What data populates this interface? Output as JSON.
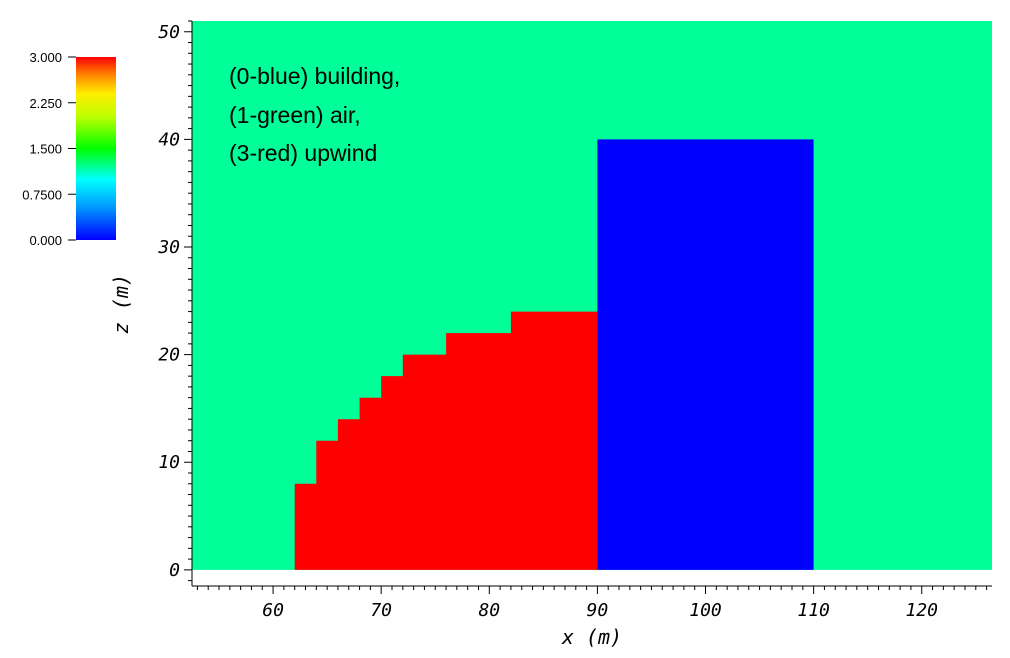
{
  "chart_data": {
    "type": "heatmap",
    "title": "",
    "xlabel": "x (m)",
    "ylabel": "z (m)",
    "xlim": [
      52.5,
      126.5
    ],
    "ylim": [
      -1.5,
      51
    ],
    "x_ticks": [
      "60",
      "70",
      "80",
      "90",
      "100",
      "110",
      "120"
    ],
    "x_tick_values": [
      60,
      70,
      80,
      90,
      100,
      110,
      120
    ],
    "y_ticks": [
      "0",
      "10",
      "20",
      "30",
      "40",
      "50"
    ],
    "y_tick_values": [
      0,
      10,
      20,
      30,
      40,
      50
    ],
    "background": {
      "value": 1,
      "color": "#00ff99",
      "x_range": [
        52.5,
        126.5
      ],
      "z_range": [
        0,
        51
      ]
    },
    "regions": [
      {
        "label": "upwind",
        "value": 3,
        "color": "#ff0000",
        "outline": [
          [
            62,
            0
          ],
          [
            62,
            8
          ],
          [
            64,
            8
          ],
          [
            64,
            12
          ],
          [
            66,
            12
          ],
          [
            66,
            14
          ],
          [
            68,
            14
          ],
          [
            68,
            16
          ],
          [
            70,
            16
          ],
          [
            70,
            18
          ],
          [
            72,
            18
          ],
          [
            72,
            20
          ],
          [
            76,
            20
          ],
          [
            76,
            22
          ],
          [
            82,
            22
          ],
          [
            82,
            24
          ],
          [
            90,
            24
          ],
          [
            90,
            0
          ]
        ]
      },
      {
        "label": "building",
        "value": 0,
        "color": "#0000ff",
        "outline": [
          [
            90,
            0
          ],
          [
            90,
            40
          ],
          [
            110,
            40
          ],
          [
            110,
            0
          ]
        ]
      }
    ],
    "colorbar": {
      "range": [
        0,
        3
      ],
      "labels": [
        "3.000",
        "2.250",
        "1.500",
        "0.7500",
        "0.000"
      ],
      "values": [
        3,
        2.25,
        1.5,
        0.75,
        0
      ]
    },
    "annotation": [
      "(0-blue) building,",
      "(1-green) air,",
      "(3-red) upwind"
    ]
  }
}
